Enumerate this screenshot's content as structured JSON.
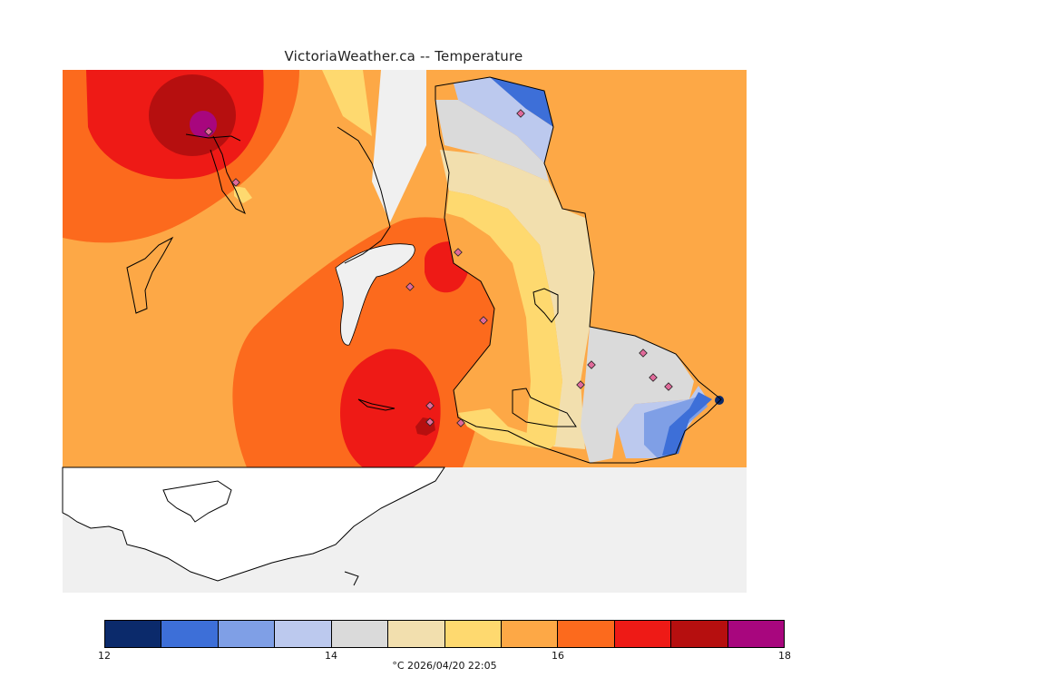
{
  "title": "VictoriaWeather.ca -- Temperature",
  "colorbar": {
    "colors": [
      "#0b2a6b",
      "#3d6fd8",
      "#7f9fe6",
      "#bcc9ee",
      "#dadada",
      "#f2dfae",
      "#fed96f",
      "#fda846",
      "#fc6a1d",
      "#ee1a16",
      "#b60f0f",
      "#a8067e"
    ],
    "ticks": [
      {
        "label": "12",
        "value": 12
      },
      {
        "label": "14",
        "value": 14
      },
      {
        "label": "16",
        "value": 16
      },
      {
        "label": "18",
        "value": 18
      }
    ],
    "min": 12,
    "max": 18,
    "caption": "°C  2026/04/20 22:05"
  },
  "map": {
    "background_color": "#f0f0f0",
    "station_count": 14
  }
}
